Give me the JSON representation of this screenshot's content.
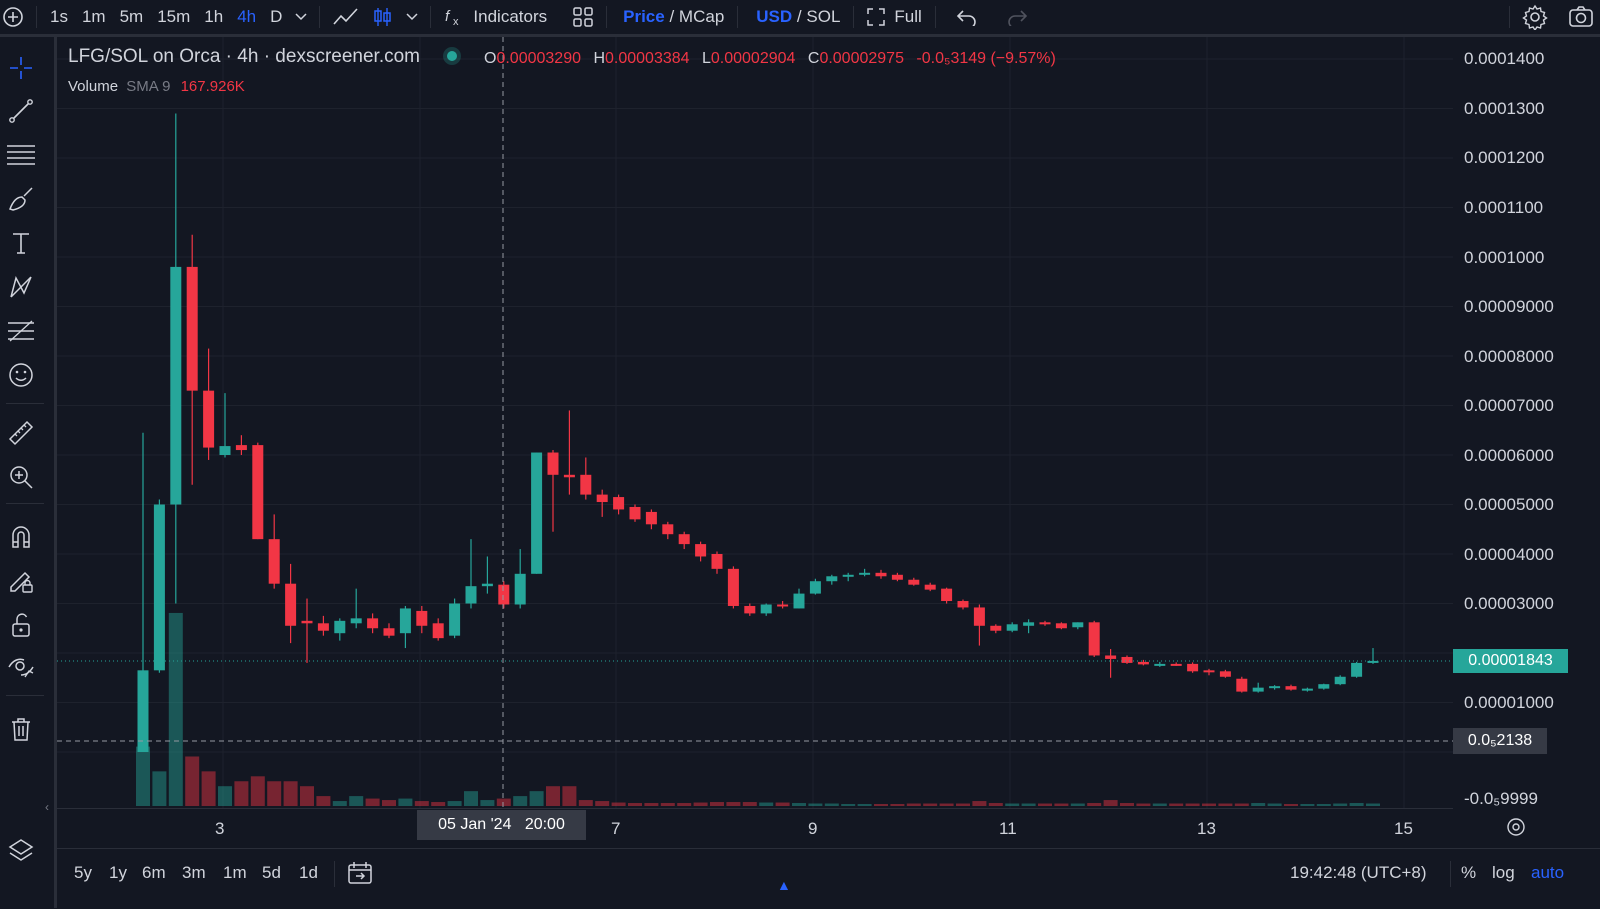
{
  "toolbar": {
    "intervals": [
      "1s",
      "1m",
      "5m",
      "15m",
      "1h",
      "4h",
      "D"
    ],
    "active_interval": "4h",
    "indicators_label": "Indicators",
    "price_label": "Price",
    "mcap_label": "MCap",
    "usd_label": "USD",
    "sol_label": "SOL",
    "slash": "/",
    "full_label": "Full"
  },
  "legend": {
    "title": "LFG/SOL on Orca · 4h · dexscreener.com",
    "o_label": "O",
    "o_value": "0.00003290",
    "h_label": "H",
    "h_value": "0.00003384",
    "l_label": "L",
    "l_value": "0.00002904",
    "c_label": "C",
    "c_value": "0.00002975",
    "change": "-0.0₅3149 (−9.57%)",
    "volume_label": "Volume",
    "sma_label": "SMA 9",
    "volume_value": "167.926K"
  },
  "price_axis": {
    "labels": [
      "0.0001400",
      "0.0001300",
      "0.0001200",
      "0.0001100",
      "0.0001000",
      "0.00009000",
      "0.00008000",
      "0.00007000",
      "0.00006000",
      "0.00005000",
      "0.00004000",
      "0.00003000",
      "0.00001000",
      "-0.0₅9999"
    ],
    "current_price": "0.00001843",
    "crosshair_price": "0.0₅2138"
  },
  "time_axis": {
    "labels": [
      "3",
      "7",
      "9",
      "11",
      "13",
      "15"
    ],
    "crosshair_time": "05 Jan '24   20:00"
  },
  "bottom": {
    "ranges": [
      "5y",
      "1y",
      "6m",
      "3m",
      "1m",
      "5d",
      "1d"
    ],
    "clock": "19:42:48 (UTC+8)",
    "percent": "%",
    "log": "log",
    "auto": "auto"
  },
  "colors": {
    "up": "#26a69a",
    "down": "#f23645",
    "accent": "#2962ff",
    "background": "#131722"
  },
  "chart_data": {
    "type": "candlestick",
    "ylim": [
      0,
      0.00014
    ],
    "candles": [
      {
        "o": 0.0,
        "h": 6.45e-05,
        "l": 0.0,
        "c": 1.65e-05
      },
      {
        "o": 1.65e-05,
        "h": 5.1e-05,
        "l": 1.6e-05,
        "c": 5e-05
      },
      {
        "o": 5e-05,
        "h": 0.000129,
        "l": 3e-05,
        "c": 9.8e-05
      },
      {
        "o": 9.8e-05,
        "h": 0.0001045,
        "l": 5.4e-05,
        "c": 7.3e-05
      },
      {
        "o": 7.3e-05,
        "h": 8.15e-05,
        "l": 5.9e-05,
        "c": 6.15e-05
      },
      {
        "o": 6e-05,
        "h": 7.25e-05,
        "l": 5.95e-05,
        "c": 6.18e-05
      },
      {
        "o": 6.2e-05,
        "h": 6.4e-05,
        "l": 6e-05,
        "c": 6.1e-05
      },
      {
        "o": 6.2e-05,
        "h": 6.25e-05,
        "l": 4.3e-05,
        "c": 4.3e-05
      },
      {
        "o": 4.3e-05,
        "h": 4.8e-05,
        "l": 3.3e-05,
        "c": 3.4e-05
      },
      {
        "o": 3.4e-05,
        "h": 3.8e-05,
        "l": 2.2e-05,
        "c": 2.55e-05
      },
      {
        "o": 2.65e-05,
        "h": 3.1e-05,
        "l": 1.8e-05,
        "c": 2.6e-05
      },
      {
        "o": 2.6e-05,
        "h": 2.75e-05,
        "l": 2.35e-05,
        "c": 2.45e-05
      },
      {
        "o": 2.4e-05,
        "h": 2.7e-05,
        "l": 2.25e-05,
        "c": 2.65e-05
      },
      {
        "o": 2.6e-05,
        "h": 3.3e-05,
        "l": 2.5e-05,
        "c": 2.7e-05
      },
      {
        "o": 2.7e-05,
        "h": 2.8e-05,
        "l": 2.4e-05,
        "c": 2.5e-05
      },
      {
        "o": 2.5e-05,
        "h": 2.6e-05,
        "l": 2.3e-05,
        "c": 2.35e-05
      },
      {
        "o": 2.4e-05,
        "h": 2.95e-05,
        "l": 2.1e-05,
        "c": 2.9e-05
      },
      {
        "o": 2.85e-05,
        "h": 2.95e-05,
        "l": 2.4e-05,
        "c": 2.55e-05
      },
      {
        "o": 2.6e-05,
        "h": 2.7e-05,
        "l": 2.25e-05,
        "c": 2.3e-05
      },
      {
        "o": 2.35e-05,
        "h": 3.1e-05,
        "l": 2.3e-05,
        "c": 3e-05
      },
      {
        "o": 3e-05,
        "h": 4.3e-05,
        "l": 2.9e-05,
        "c": 3.35e-05
      },
      {
        "o": 3.35e-05,
        "h": 3.95e-05,
        "l": 3.2e-05,
        "c": 3.4e-05
      },
      {
        "o": 3.38e-05,
        "h": 3.45e-05,
        "l": 2.9e-05,
        "c": 2.98e-05
      },
      {
        "o": 2.98e-05,
        "h": 4.1e-05,
        "l": 2.9e-05,
        "c": 3.6e-05
      },
      {
        "o": 3.6e-05,
        "h": 6.05e-05,
        "l": 3.6e-05,
        "c": 6.05e-05
      },
      {
        "o": 6.05e-05,
        "h": 6.1e-05,
        "l": 4.45e-05,
        "c": 5.6e-05
      },
      {
        "o": 5.6e-05,
        "h": 6.9e-05,
        "l": 5.2e-05,
        "c": 5.55e-05
      },
      {
        "o": 5.6e-05,
        "h": 5.95e-05,
        "l": 5.1e-05,
        "c": 5.2e-05
      },
      {
        "o": 5.2e-05,
        "h": 5.3e-05,
        "l": 4.75e-05,
        "c": 5.05e-05
      },
      {
        "o": 5.15e-05,
        "h": 5.2e-05,
        "l": 4.8e-05,
        "c": 4.9e-05
      },
      {
        "o": 4.95e-05,
        "h": 5e-05,
        "l": 4.65e-05,
        "c": 4.7e-05
      },
      {
        "o": 4.85e-05,
        "h": 4.9e-05,
        "l": 4.5e-05,
        "c": 4.6e-05
      },
      {
        "o": 4.6e-05,
        "h": 4.65e-05,
        "l": 4.3e-05,
        "c": 4.4e-05
      },
      {
        "o": 4.4e-05,
        "h": 4.45e-05,
        "l": 4.1e-05,
        "c": 4.2e-05
      },
      {
        "o": 4.2e-05,
        "h": 4.25e-05,
        "l": 3.85e-05,
        "c": 3.95e-05
      },
      {
        "o": 4e-05,
        "h": 4.05e-05,
        "l": 3.6e-05,
        "c": 3.7e-05
      },
      {
        "o": 3.7e-05,
        "h": 3.75e-05,
        "l": 2.9e-05,
        "c": 2.95e-05
      },
      {
        "o": 2.95e-05,
        "h": 3e-05,
        "l": 2.75e-05,
        "c": 2.8e-05
      },
      {
        "o": 2.8e-05,
        "h": 3e-05,
        "l": 2.75e-05,
        "c": 2.98e-05
      },
      {
        "o": 2.98e-05,
        "h": 3.05e-05,
        "l": 2.9e-05,
        "c": 2.95e-05
      },
      {
        "o": 2.9e-05,
        "h": 3.3e-05,
        "l": 2.9e-05,
        "c": 3.2e-05
      },
      {
        "o": 3.2e-05,
        "h": 3.5e-05,
        "l": 3.18e-05,
        "c": 3.45e-05
      },
      {
        "o": 3.45e-05,
        "h": 3.58e-05,
        "l": 3.38e-05,
        "c": 3.55e-05
      },
      {
        "o": 3.55e-05,
        "h": 3.62e-05,
        "l": 3.45e-05,
        "c": 3.58e-05
      },
      {
        "o": 3.58e-05,
        "h": 3.7e-05,
        "l": 3.55e-05,
        "c": 3.62e-05
      },
      {
        "o": 3.62e-05,
        "h": 3.68e-05,
        "l": 3.5e-05,
        "c": 3.55e-05
      },
      {
        "o": 3.58e-05,
        "h": 3.62e-05,
        "l": 3.45e-05,
        "c": 3.48e-05
      },
      {
        "o": 3.48e-05,
        "h": 3.52e-05,
        "l": 3.36e-05,
        "c": 3.38e-05
      },
      {
        "o": 3.38e-05,
        "h": 3.42e-05,
        "l": 3.25e-05,
        "c": 3.28e-05
      },
      {
        "o": 3.3e-05,
        "h": 3.32e-05,
        "l": 3e-05,
        "c": 3.05e-05
      },
      {
        "o": 3.05e-05,
        "h": 3.08e-05,
        "l": 2.88e-05,
        "c": 2.92e-05
      },
      {
        "o": 2.92e-05,
        "h": 2.98e-05,
        "l": 2.15e-05,
        "c": 2.55e-05
      },
      {
        "o": 2.55e-05,
        "h": 2.58e-05,
        "l": 2.4e-05,
        "c": 2.45e-05
      },
      {
        "o": 2.45e-05,
        "h": 2.62e-05,
        "l": 2.42e-05,
        "c": 2.58e-05
      },
      {
        "o": 2.55e-05,
        "h": 2.68e-05,
        "l": 2.4e-05,
        "c": 2.62e-05
      },
      {
        "o": 2.62e-05,
        "h": 2.65e-05,
        "l": 2.55e-05,
        "c": 2.58e-05
      },
      {
        "o": 2.6e-05,
        "h": 2.62e-05,
        "l": 2.48e-05,
        "c": 2.5e-05
      },
      {
        "o": 2.52e-05,
        "h": 2.62e-05,
        "l": 2.48e-05,
        "c": 2.62e-05
      },
      {
        "o": 2.62e-05,
        "h": 2.65e-05,
        "l": 1.92e-05,
        "c": 1.95e-05
      },
      {
        "o": 1.95e-05,
        "h": 2.08e-05,
        "l": 1.5e-05,
        "c": 1.88e-05
      },
      {
        "o": 1.92e-05,
        "h": 1.95e-05,
        "l": 1.78e-05,
        "c": 1.8e-05
      },
      {
        "o": 1.82e-05,
        "h": 1.86e-05,
        "l": 1.75e-05,
        "c": 1.77e-05
      },
      {
        "o": 1.76e-05,
        "h": 1.82e-05,
        "l": 1.72e-05,
        "c": 1.78e-05
      },
      {
        "o": 1.78e-05,
        "h": 1.81e-05,
        "l": 1.74e-05,
        "c": 1.76e-05
      },
      {
        "o": 1.78e-05,
        "h": 1.81e-05,
        "l": 1.6e-05,
        "c": 1.63e-05
      },
      {
        "o": 1.65e-05,
        "h": 1.68e-05,
        "l": 1.55e-05,
        "c": 1.63e-05
      },
      {
        "o": 1.63e-05,
        "h": 1.66e-05,
        "l": 1.5e-05,
        "c": 1.52e-05
      },
      {
        "o": 1.48e-05,
        "h": 1.52e-05,
        "l": 1.2e-05,
        "c": 1.22e-05
      },
      {
        "o": 1.22e-05,
        "h": 1.4e-05,
        "l": 1.2e-05,
        "c": 1.3e-05
      },
      {
        "o": 1.3e-05,
        "h": 1.35e-05,
        "l": 1.26e-05,
        "c": 1.33e-05
      },
      {
        "o": 1.33e-05,
        "h": 1.36e-05,
        "l": 1.24e-05,
        "c": 1.26e-05
      },
      {
        "o": 1.24e-05,
        "h": 1.3e-05,
        "l": 1.22e-05,
        "c": 1.28e-05
      },
      {
        "o": 1.28e-05,
        "h": 1.38e-05,
        "l": 1.26e-05,
        "c": 1.37e-05
      },
      {
        "o": 1.37e-05,
        "h": 1.55e-05,
        "l": 1.35e-05,
        "c": 1.52e-05
      },
      {
        "o": 1.52e-05,
        "h": 1.82e-05,
        "l": 1.5e-05,
        "c": 1.8e-05
      },
      {
        "o": 1.8e-05,
        "h": 2.1e-05,
        "l": 1.78e-05,
        "c": 1.84e-05
      }
    ],
    "volume": [
      0.12,
      0.07,
      0.39,
      0.1,
      0.07,
      0.04,
      0.05,
      0.06,
      0.05,
      0.05,
      0.04,
      0.02,
      0.01,
      0.02,
      0.015,
      0.012,
      0.015,
      0.01,
      0.008,
      0.01,
      0.03,
      0.012,
      0.015,
      0.02,
      0.03,
      0.04,
      0.04,
      0.012,
      0.01,
      0.007,
      0.006,
      0.006,
      0.006,
      0.006,
      0.007,
      0.008,
      0.008,
      0.008,
      0.007,
      0.007,
      0.006,
      0.005,
      0.005,
      0.004,
      0.004,
      0.004,
      0.004,
      0.005,
      0.005,
      0.005,
      0.005,
      0.01,
      0.006,
      0.005,
      0.005,
      0.005,
      0.005,
      0.005,
      0.006,
      0.012,
      0.006,
      0.005,
      0.005,
      0.005,
      0.005,
      0.005,
      0.005,
      0.005,
      0.006,
      0.005,
      0.004,
      0.004,
      0.004,
      0.005,
      0.006,
      0.005
    ]
  }
}
